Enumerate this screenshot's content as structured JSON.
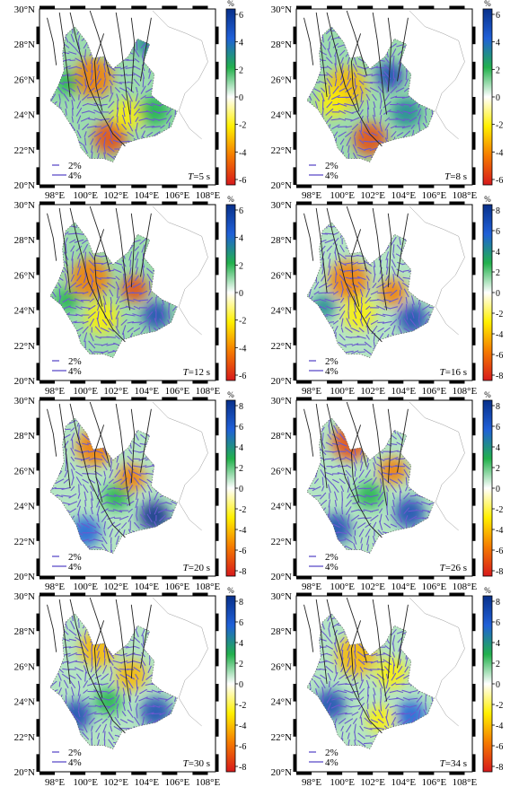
{
  "chart_data": {
    "type": "heatmap",
    "x_ticks": [
      "98°E",
      "100°E",
      "102°E",
      "104°E",
      "106°E",
      "108°E"
    ],
    "y_ticks": [
      "20°N",
      "22°N",
      "24°N",
      "26°N",
      "28°N",
      "30°N"
    ],
    "xlim": [
      97,
      108.5
    ],
    "ylim": [
      20,
      30
    ],
    "legend_items": [
      "2%",
      "4%"
    ],
    "colorbar_unit": "%",
    "colormap": [
      "#d7191c",
      "#f57b00",
      "#fff000",
      "#ffffff",
      "#22b14c",
      "#2060d8",
      "#08308a"
    ],
    "anisotropy_color": "#6a5acd",
    "period_prefix": "T",
    "panels": [
      {
        "period_label": "=5 s",
        "colorbar_ticks": [
          "6",
          "4",
          "2",
          "0",
          "-2",
          "-4",
          "-6"
        ],
        "vmin": -6,
        "vmax": 6
      },
      {
        "period_label": "=8 s",
        "colorbar_ticks": [
          "6",
          "4",
          "2",
          "0",
          "-2",
          "-4",
          "-6"
        ],
        "vmin": -6,
        "vmax": 6
      },
      {
        "period_label": "=12 s",
        "colorbar_ticks": [
          "6",
          "4",
          "2",
          "0",
          "-2",
          "-4",
          "-6"
        ],
        "vmin": -6,
        "vmax": 6
      },
      {
        "period_label": "=16 s",
        "colorbar_ticks": [
          "8",
          "6",
          "4",
          "2",
          "0",
          "-2",
          "-4",
          "-6",
          "-8"
        ],
        "vmin": -8,
        "vmax": 8
      },
      {
        "period_label": "=20 s",
        "colorbar_ticks": [
          "8",
          "6",
          "4",
          "2",
          "0",
          "-2",
          "-4",
          "-6",
          "-8"
        ],
        "vmin": -8,
        "vmax": 8
      },
      {
        "period_label": "=26 s",
        "colorbar_ticks": [
          "8",
          "6",
          "4",
          "2",
          "0",
          "-2",
          "-4",
          "-6",
          "-8"
        ],
        "vmin": -8,
        "vmax": 8
      },
      {
        "period_label": "=30 s",
        "colorbar_ticks": [
          "8",
          "6",
          "4",
          "2",
          "0",
          "-2",
          "-4",
          "-6",
          "-8"
        ],
        "vmin": -8,
        "vmax": 8
      },
      {
        "period_label": "=34 s",
        "colorbar_ticks": [
          "8",
          "6",
          "4",
          "2",
          "0",
          "-2",
          "-4",
          "-6",
          "-8"
        ],
        "vmin": -8,
        "vmax": 8
      }
    ]
  }
}
